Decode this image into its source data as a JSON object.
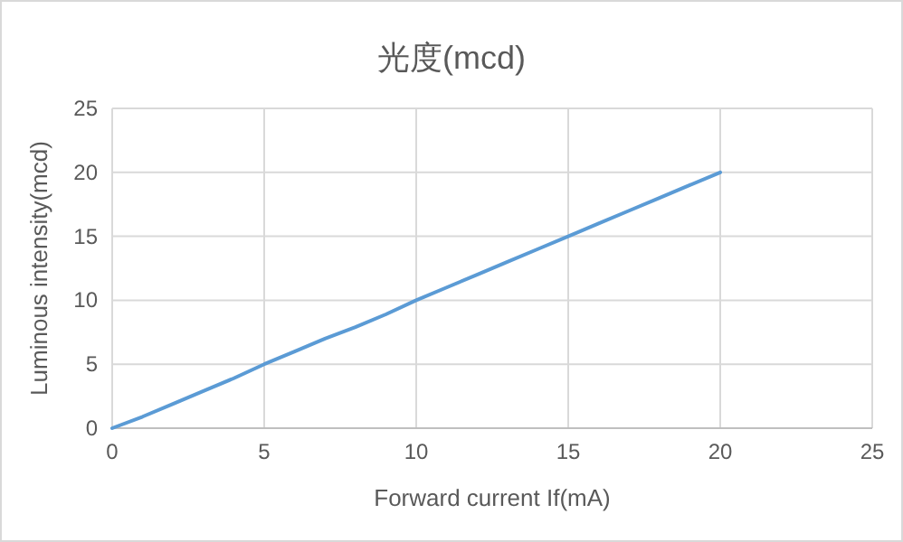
{
  "chart_data": {
    "type": "line",
    "title": "光度(mcd)",
    "xlabel": "Forward current If(mA)",
    "ylabel": "Luminous intensity(mcd)",
    "x": [
      0,
      1,
      2,
      3,
      4,
      5,
      6,
      7,
      8,
      9,
      10,
      11,
      12,
      13,
      14,
      15,
      16,
      17,
      18,
      19,
      20
    ],
    "series": [
      {
        "color": "#5b9bd5",
        "values": [
          0,
          0.9,
          1.9,
          2.9,
          3.9,
          5,
          6,
          7,
          7.9,
          8.9,
          10,
          11,
          12,
          13,
          14,
          15,
          16,
          17,
          18,
          19,
          20
        ]
      }
    ],
    "xlim": [
      0,
      25
    ],
    "ylim": [
      0,
      25
    ],
    "xticks": [
      0,
      5,
      10,
      15,
      20,
      25
    ],
    "yticks": [
      0,
      5,
      10,
      15,
      20,
      25
    ],
    "grid": true,
    "marker": "none"
  }
}
